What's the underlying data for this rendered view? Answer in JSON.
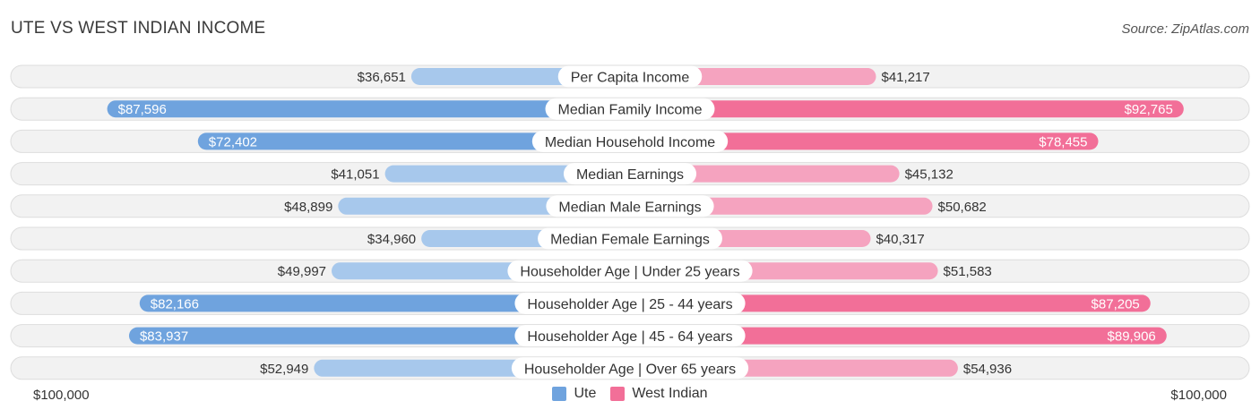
{
  "header": {
    "title": "UTE VS WEST INDIAN INCOME",
    "source": "Source: ZipAtlas.com"
  },
  "axis": {
    "left_label": "$100,000",
    "right_label": "$100,000"
  },
  "legend": [
    {
      "name": "Ute",
      "color": "#6fa3de"
    },
    {
      "name": "West Indian",
      "color": "#f26f98"
    }
  ],
  "colors": {
    "ute_strong": "#6fa3de",
    "ute_light": "#a7c8ec",
    "wi_strong": "#f26f98",
    "wi_light": "#f5a3bf",
    "row_bg": "#f2f2f2",
    "row_border": "#dddddd"
  },
  "chart_data": {
    "type": "bar",
    "orientation": "horizontal-diverging",
    "xlim": [
      0,
      100000
    ],
    "categories": [
      "Per Capita Income",
      "Median Family Income",
      "Median Household Income",
      "Median Earnings",
      "Median Male Earnings",
      "Median Female Earnings",
      "Householder Age | Under 25 years",
      "Householder Age | 25 - 44 years",
      "Householder Age | 45 - 64 years",
      "Householder Age | Over 65 years"
    ],
    "series": [
      {
        "name": "Ute",
        "values": [
          36651,
          87596,
          72402,
          41051,
          48899,
          34960,
          49997,
          82166,
          83937,
          52949
        ],
        "labels": [
          "$36,651",
          "$87,596",
          "$72,402",
          "$41,051",
          "$48,899",
          "$34,960",
          "$49,997",
          "$82,166",
          "$83,937",
          "$52,949"
        ]
      },
      {
        "name": "West Indian",
        "values": [
          41217,
          92765,
          78455,
          45132,
          50682,
          40317,
          51583,
          87205,
          89906,
          54936
        ],
        "labels": [
          "$41,217",
          "$92,765",
          "$78,455",
          "$45,132",
          "$50,682",
          "$40,317",
          "$51,583",
          "$87,205",
          "$89,906",
          "$54,936"
        ]
      }
    ],
    "highlighted_rows": [
      1,
      2,
      7,
      8
    ]
  }
}
